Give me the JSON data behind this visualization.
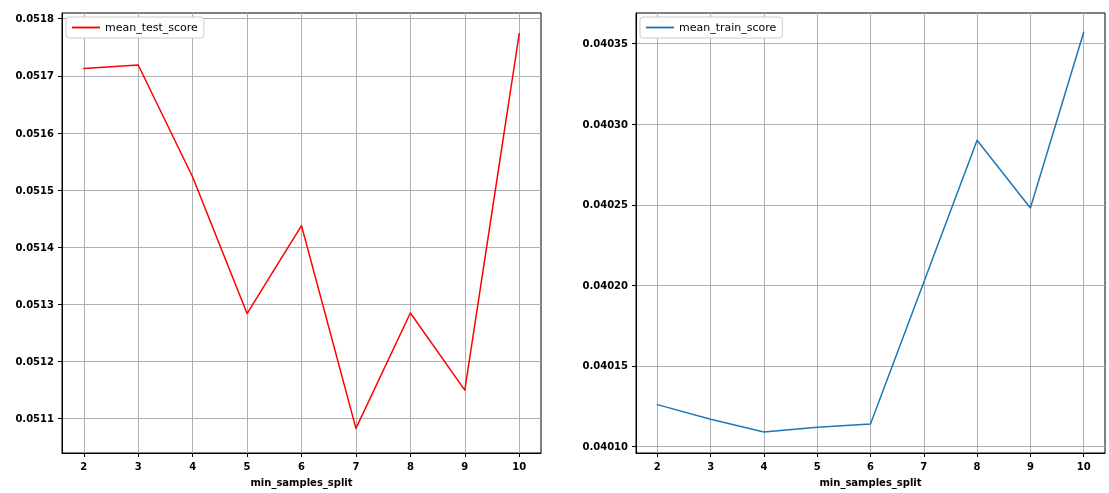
{
  "chart_data": [
    {
      "type": "line",
      "xlabel": "min_samples_split",
      "x": [
        2,
        3,
        4,
        5,
        6,
        7,
        8,
        9,
        10
      ],
      "series": [
        {
          "name": "mean_test_score",
          "color": "#ff0000",
          "values": [
            0.051713,
            0.051719,
            0.051523,
            0.051284,
            0.051438,
            0.051083,
            0.051285,
            0.05115,
            0.051774
          ]
        }
      ],
      "xlim": [
        1.6,
        10.4
      ],
      "xticks": [
        2,
        3,
        4,
        5,
        6,
        7,
        8,
        9,
        10
      ],
      "ylim": [
        0.05104,
        0.05181
      ],
      "yticks": [
        0.0511,
        0.0512,
        0.0513,
        0.0514,
        0.0515,
        0.0516,
        0.0517,
        0.0518
      ],
      "grid": true,
      "legend": "top left"
    },
    {
      "type": "line",
      "xlabel": "min_samples_split",
      "x": [
        2,
        3,
        4,
        5,
        6,
        7,
        8,
        9,
        10
      ],
      "series": [
        {
          "name": "mean_train_score",
          "color": "#1f77b4",
          "values": [
            0.040126,
            0.040117,
            0.040109,
            0.040112,
            0.040114,
            0.040202,
            0.04029,
            0.040248,
            0.040357
          ]
        }
      ],
      "xlim": [
        1.6,
        10.4
      ],
      "xticks": [
        2,
        3,
        4,
        5,
        6,
        7,
        8,
        9,
        10
      ],
      "ylim": [
        0.040096,
        0.040369
      ],
      "yticks": [
        {
          "value": 0.0401,
          "label": "0.04010"
        },
        {
          "value": 0.04015,
          "label": "0.04015"
        },
        {
          "value": 0.0402,
          "label": "0.04020"
        },
        {
          "value": 0.04025,
          "label": "0.04025"
        },
        {
          "value": 0.0403,
          "label": "0.04030"
        },
        {
          "value": 0.04035,
          "label": "0.04035"
        }
      ],
      "grid": true,
      "legend": "top left"
    }
  ]
}
